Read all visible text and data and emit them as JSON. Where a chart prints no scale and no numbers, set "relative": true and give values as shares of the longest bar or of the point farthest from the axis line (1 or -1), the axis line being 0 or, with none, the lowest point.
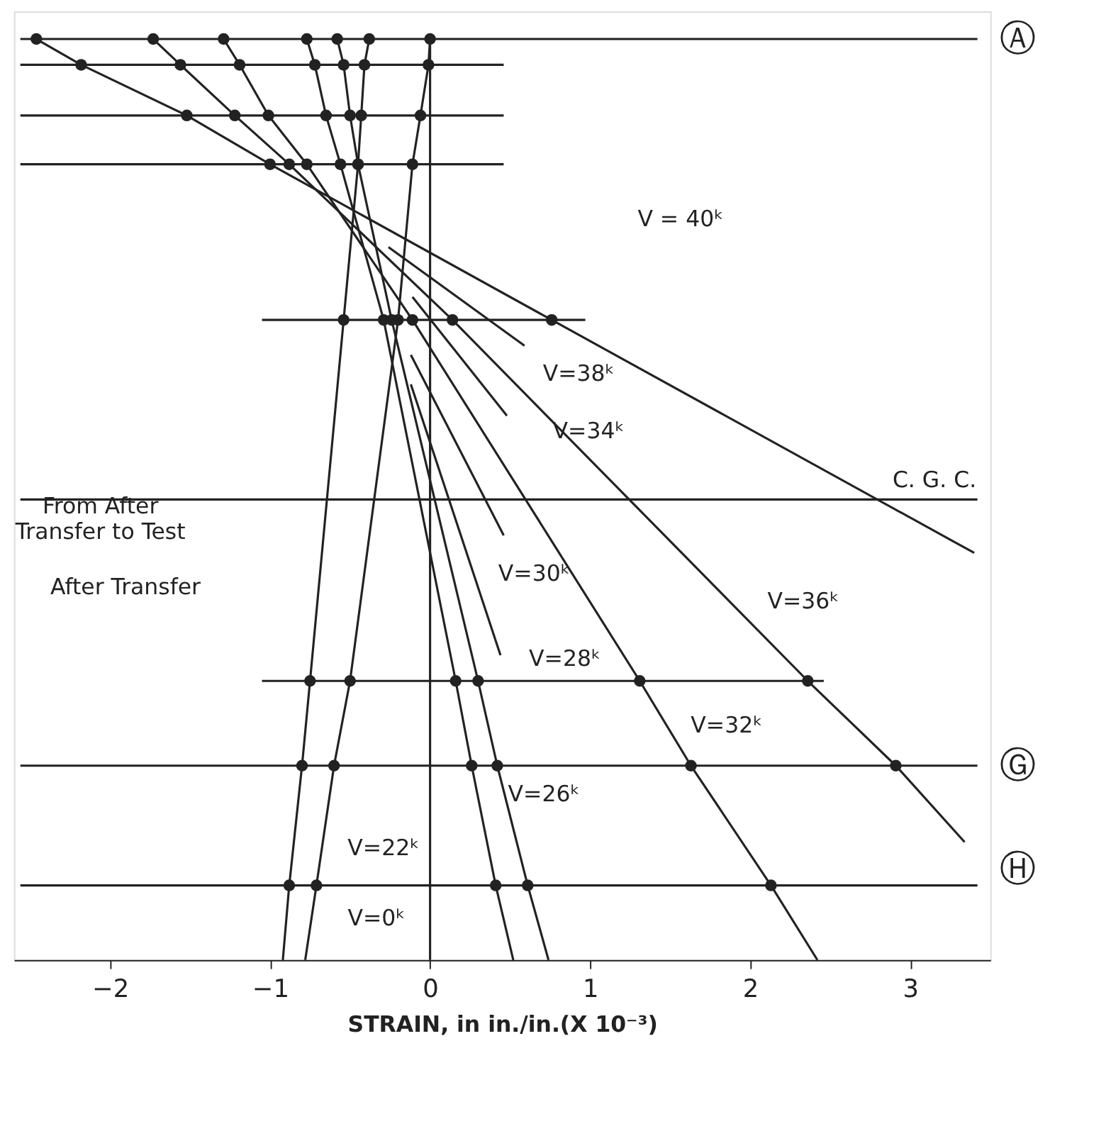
{
  "chart_data": {
    "type": "line",
    "relative": true,
    "xlabel": "STRAIN, in in./in.(X 10⁻³)",
    "xlim": [
      -2.6,
      3.5
    ],
    "xticks": [
      -2,
      -1,
      0,
      1,
      2,
      3
    ],
    "tick_labels": "x",
    "grid": false,
    "line_style": "solid",
    "series": [
      {
        "marker": "none",
        "color": "#222222",
        "x": [
          -0.92,
          -0.88,
          -0.8,
          -0.75,
          -0.54,
          -0.45,
          -0.43,
          -0.41,
          -0.38
        ],
        "values": [
          0,
          0.081,
          0.211,
          0.303,
          0.695,
          0.864,
          0.917,
          0.972,
          1.0
        ]
      },
      {
        "type": "scatter",
        "marker": "circle",
        "color": "#222222",
        "x": [
          -0.88,
          -0.8,
          -0.75,
          -0.54,
          -0.45,
          -0.43,
          -0.41,
          -0.38
        ],
        "values": [
          0.081,
          0.211,
          0.303,
          0.695,
          0.864,
          0.917,
          0.972,
          1.0
        ]
      },
      {
        "marker": "none",
        "color": "#222222",
        "x": [
          -0.78,
          -0.71,
          -0.6,
          -0.5,
          -0.2,
          -0.11,
          -0.06,
          -0.01,
          0.0
        ],
        "values": [
          0,
          0.081,
          0.211,
          0.303,
          0.695,
          0.864,
          0.917,
          0.972,
          1.0
        ]
      },
      {
        "type": "scatter",
        "marker": "circle",
        "color": "#222222",
        "x": [
          -0.71,
          -0.6,
          -0.5,
          -0.2,
          -0.11,
          -0.06,
          -0.01,
          0.0
        ],
        "values": [
          0.081,
          0.211,
          0.303,
          0.695,
          0.864,
          0.917,
          0.972,
          1.0
        ]
      },
      {
        "marker": "none",
        "color": "#222222",
        "x": [
          0.52,
          0.41,
          0.26,
          0.16,
          -0.29,
          -0.56,
          -0.65,
          -0.72,
          -0.77
        ],
        "values": [
          0,
          0.081,
          0.211,
          0.303,
          0.695,
          0.864,
          0.917,
          0.972,
          1.0
        ]
      },
      {
        "type": "scatter",
        "marker": "circle",
        "color": "#222222",
        "x": [
          0.41,
          0.26,
          0.16,
          -0.29,
          -0.56,
          -0.65,
          -0.72,
          -0.77
        ],
        "values": [
          0.081,
          0.211,
          0.303,
          0.695,
          0.864,
          0.917,
          0.972,
          1.0
        ]
      },
      {
        "marker": "none",
        "color": "#222222",
        "x": [
          0.74,
          0.61,
          0.42,
          0.3,
          -0.24,
          -0.45,
          -0.5,
          -0.54,
          -0.58
        ],
        "values": [
          0,
          0.081,
          0.211,
          0.303,
          0.695,
          0.864,
          0.917,
          0.972,
          1.0
        ]
      },
      {
        "type": "scatter",
        "marker": "circle",
        "color": "#222222",
        "x": [
          0.61,
          0.42,
          0.3,
          -0.24,
          -0.45,
          -0.5,
          -0.54,
          -0.58
        ],
        "values": [
          0.081,
          0.211,
          0.303,
          0.695,
          0.864,
          0.917,
          0.972,
          1.0
        ]
      },
      {
        "marker": "none",
        "color": "#222222",
        "x": [
          2.42,
          2.13,
          1.63,
          1.31,
          -0.11,
          -0.77,
          -1.01,
          -1.19,
          -1.29
        ],
        "values": [
          0,
          0.081,
          0.211,
          0.303,
          0.695,
          0.864,
          0.917,
          0.972,
          1.0
        ]
      },
      {
        "type": "scatter",
        "marker": "circle",
        "color": "#222222",
        "x": [
          2.13,
          1.63,
          1.31,
          -0.11,
          -0.77,
          -1.01,
          -1.19,
          -1.29
        ],
        "values": [
          0.081,
          0.211,
          0.303,
          0.695,
          0.864,
          0.917,
          0.972,
          1.0
        ]
      },
      {
        "marker": "none",
        "color": "#222222",
        "x": [
          3.34,
          2.91,
          2.36,
          0.14,
          -0.88,
          -1.22,
          -1.56,
          -1.73
        ],
        "values": [
          0.128,
          0.211,
          0.303,
          0.695,
          0.864,
          0.917,
          0.972,
          1.0
        ]
      },
      {
        "type": "scatter",
        "marker": "circle",
        "color": "#222222",
        "x": [
          2.91,
          2.36,
          0.14,
          -0.88,
          -1.22,
          -1.56,
          -1.73
        ],
        "values": [
          0.211,
          0.303,
          0.695,
          0.864,
          0.917,
          0.972,
          1.0
        ]
      },
      {
        "marker": "none",
        "color": "#222222",
        "x": [
          3.4,
          0.76,
          -1.0,
          -1.52,
          -2.18,
          -2.46
        ],
        "values": [
          0.442,
          0.695,
          0.864,
          0.917,
          0.972,
          1.0
        ]
      },
      {
        "type": "scatter",
        "marker": "circle",
        "color": "#222222",
        "x": [
          0.76,
          -1.0,
          -1.52,
          -2.18,
          -2.46
        ],
        "values": [
          0.695,
          0.864,
          0.917,
          0.972,
          1.0
        ]
      },
      {
        "marker": "none",
        "color": "#222222",
        "x": [
          -0.26,
          0.59
        ],
        "values": [
          0.774,
          0.667
        ]
      },
      {
        "marker": "none",
        "color": "#222222",
        "x": [
          -0.11,
          0.48
        ],
        "values": [
          0.72,
          0.591
        ]
      },
      {
        "marker": "none",
        "color": "#222222",
        "x": [
          -0.12,
          0.46
        ],
        "values": [
          0.657,
          0.461
        ]
      },
      {
        "marker": "none",
        "color": "#222222",
        "x": [
          -0.12,
          0.44
        ],
        "values": [
          0.625,
          0.331
        ]
      },
      {
        "marker": "none",
        "color": "#222222",
        "x": [
          -2.56,
          3.42
        ],
        "values": [
          1.0,
          1.0
        ]
      },
      {
        "marker": "none",
        "color": "#222222",
        "x": [
          -2.56,
          0.46
        ],
        "values": [
          0.972,
          0.972
        ]
      },
      {
        "marker": "none",
        "color": "#222222",
        "x": [
          -2.56,
          0.46
        ],
        "values": [
          0.917,
          0.917
        ]
      },
      {
        "marker": "none",
        "color": "#222222",
        "x": [
          -2.56,
          0.46
        ],
        "values": [
          0.864,
          0.864
        ]
      },
      {
        "marker": "none",
        "color": "#222222",
        "x": [
          -1.05,
          0.97
        ],
        "values": [
          0.695,
          0.695
        ]
      },
      {
        "marker": "none",
        "color": "#222222",
        "x": [
          -2.56,
          3.42
        ],
        "values": [
          0.5,
          0.5
        ]
      },
      {
        "marker": "none",
        "color": "#222222",
        "x": [
          -1.05,
          2.46
        ],
        "values": [
          0.303,
          0.303
        ]
      },
      {
        "marker": "none",
        "color": "#222222",
        "x": [
          -2.56,
          3.42
        ],
        "values": [
          0.211,
          0.211
        ]
      },
      {
        "marker": "none",
        "color": "#222222",
        "x": [
          -2.56,
          3.42
        ],
        "values": [
          0.081,
          0.081
        ]
      },
      {
        "marker": "none",
        "color": "#222222",
        "x": [
          0,
          0
        ],
        "values": [
          0,
          1.0
        ]
      }
    ],
    "annotations": [
      "Ⓐ",
      "C. G. C.",
      "Ⓖ",
      "Ⓗ",
      "V = 40ᵏ",
      "V=38ᵏ",
      "V=34ᵏ",
      "V=36ᵏ",
      "V=30ᵏ",
      "V=28ᵏ",
      "V=32ᵏ",
      "V=26ᵏ",
      "V=22ᵏ",
      "V=0ᵏ",
      "From After\nTransfer to Test",
      "After Transfer"
    ]
  }
}
